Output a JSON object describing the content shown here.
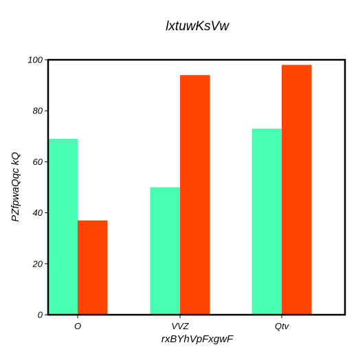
{
  "chart_data": {
    "type": "bar",
    "title": "lxtuwKsVw",
    "xlabel": "rxBYhVpFxgwF",
    "ylabel": "PZfpwaQqc  kQ",
    "categories": [
      "O",
      "VVZ",
      "Qtv"
    ],
    "series": [
      {
        "color": "#46ffb0",
        "values": [
          69,
          50,
          73
        ]
      },
      {
        "color": "#ff4500",
        "values": [
          37,
          94,
          98
        ]
      }
    ],
    "ylim": [
      0,
      100
    ],
    "yticks": [
      0,
      20,
      40,
      60,
      80,
      100
    ],
    "grid": false,
    "legend": "none"
  }
}
